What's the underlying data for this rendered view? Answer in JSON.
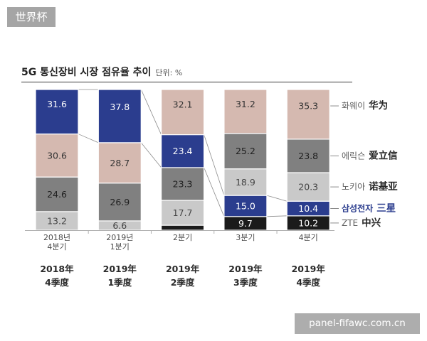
{
  "header": {
    "badge": "世界杯"
  },
  "watermark": {
    "text": "panel-fifawc.com.cn"
  },
  "chart_data": {
    "type": "bar",
    "stacked": true,
    "title": "5G 통신장비 시장 점유율 추이",
    "unit": "단위: %",
    "ylim": [
      0,
      100
    ],
    "grid": false,
    "legend": "right",
    "categories": [
      [
        "2018년",
        "4분기"
      ],
      [
        "2019년",
        "1분기"
      ],
      [
        "2분기"
      ],
      [
        "3분기"
      ],
      [
        "4분기"
      ]
    ],
    "category_annotations": [
      [
        "2018年",
        "4季度"
      ],
      [
        "2019年",
        "1季度"
      ],
      [
        "2019年",
        "2季度"
      ],
      [
        "2019年",
        "3季度"
      ],
      [
        "2019年",
        "4季度"
      ]
    ],
    "series": [
      {
        "name": "화웨이",
        "name_zh": "华为",
        "color": "#d5b9b0",
        "label_color": "#333333",
        "values": [
          30.6,
          28.7,
          32.1,
          31.2,
          35.3
        ]
      },
      {
        "name": "에릭슨",
        "name_zh": "爱立信",
        "color": "#808080",
        "label_color": "#1e1e1e",
        "values": [
          24.6,
          26.9,
          23.3,
          25.2,
          23.8
        ]
      },
      {
        "name": "노키아",
        "name_zh": "诺基亚",
        "color": "#c9c9c9",
        "label_color": "#444444",
        "values": [
          13.2,
          6.6,
          17.7,
          18.9,
          20.3
        ]
      },
      {
        "name": "삼성전자",
        "name_zh": "三星",
        "color": "#2b3d8e",
        "label_color": "#ffffff",
        "legend_color": "#2b3d8e",
        "connectors": true,
        "values": [
          31.6,
          37.8,
          23.4,
          15.0,
          10.4
        ]
      },
      {
        "name": "ZTE",
        "name_zh": "中兴",
        "color": "#1b1b1b",
        "label_color": "#ffffff",
        "values": [
          null,
          null,
          3.5,
          9.7,
          10.2
        ]
      }
    ]
  }
}
